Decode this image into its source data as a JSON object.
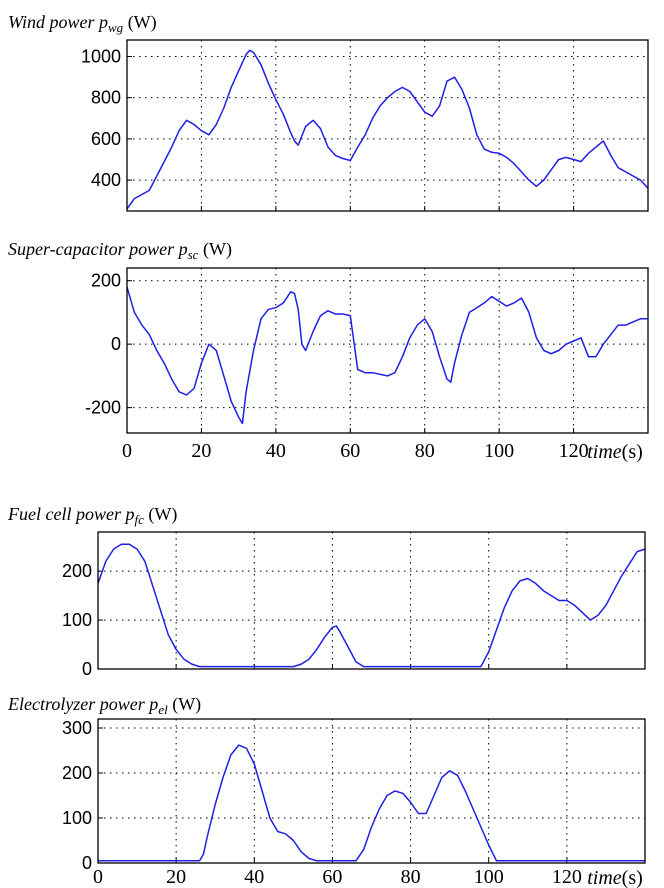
{
  "colors": {
    "series": "#1f1fe6",
    "axis": "#000000",
    "background": "#ffffff"
  },
  "x_axis": {
    "ticks": [
      0,
      20,
      40,
      60,
      80,
      100,
      120
    ],
    "label_main": "time",
    "label_unit": "(s)"
  },
  "chart_data": [
    {
      "type": "line",
      "title_main": "Wind power p",
      "title_sub": "wg",
      "title_unit": " (W)",
      "xlim": [
        0,
        140
      ],
      "ylim": [
        250,
        1080
      ],
      "yticks": [
        400,
        600,
        800,
        1000
      ],
      "grid": true,
      "series": [
        {
          "x": [
            0,
            2,
            4,
            6,
            8,
            10,
            12,
            14,
            16,
            17,
            18,
            20,
            22,
            24,
            26,
            28,
            30,
            32,
            33,
            34,
            36,
            38,
            40,
            42,
            44,
            45,
            46,
            48,
            50,
            52,
            54,
            56,
            58,
            60,
            62,
            64,
            66,
            68,
            70,
            72,
            74,
            76,
            78,
            80,
            82,
            84,
            86,
            88,
            90,
            92,
            94,
            96,
            98,
            100,
            102,
            104,
            106,
            108,
            110,
            112,
            114,
            116,
            118,
            120,
            122,
            124,
            126,
            128,
            130,
            132,
            134,
            136,
            138,
            140
          ],
          "y": [
            260,
            310,
            330,
            350,
            420,
            490,
            560,
            640,
            690,
            680,
            670,
            640,
            620,
            670,
            750,
            850,
            930,
            1010,
            1030,
            1020,
            960,
            870,
            790,
            720,
            630,
            590,
            570,
            660,
            690,
            650,
            560,
            520,
            505,
            495,
            560,
            620,
            700,
            760,
            800,
            830,
            850,
            830,
            780,
            730,
            710,
            760,
            880,
            900,
            840,
            750,
            620,
            550,
            535,
            530,
            510,
            480,
            440,
            400,
            370,
            400,
            450,
            500,
            510,
            500,
            490,
            530,
            560,
            590,
            520,
            460,
            440,
            420,
            400,
            360
          ]
        }
      ]
    },
    {
      "type": "line",
      "title_main": "Super-capacitor power p",
      "title_sub": "sc",
      "title_unit": " (W)",
      "xlim": [
        0,
        140
      ],
      "ylim": [
        -280,
        240
      ],
      "yticks": [
        -200,
        0,
        200
      ],
      "grid": true,
      "series": [
        {
          "x": [
            0,
            1,
            2,
            4,
            6,
            8,
            10,
            12,
            14,
            16,
            18,
            20,
            22,
            24,
            26,
            28,
            30,
            31,
            32,
            34,
            36,
            38,
            40,
            42,
            44,
            45,
            46,
            47,
            48,
            50,
            52,
            54,
            56,
            58,
            60,
            62,
            64,
            66,
            68,
            70,
            72,
            74,
            76,
            78,
            80,
            82,
            84,
            86,
            87,
            88,
            90,
            92,
            94,
            96,
            98,
            100,
            102,
            104,
            106,
            108,
            110,
            112,
            114,
            116,
            118,
            120,
            122,
            124,
            126,
            128,
            130,
            132,
            134,
            136,
            138,
            140
          ],
          "y": [
            180,
            140,
            100,
            60,
            30,
            -20,
            -60,
            -110,
            -150,
            -160,
            -140,
            -60,
            0,
            -20,
            -100,
            -180,
            -230,
            -250,
            -150,
            -20,
            80,
            110,
            115,
            130,
            165,
            160,
            110,
            0,
            -20,
            40,
            90,
            105,
            95,
            95,
            90,
            -80,
            -90,
            -90,
            -95,
            -100,
            -90,
            -40,
            20,
            60,
            80,
            40,
            -40,
            -110,
            -120,
            -60,
            30,
            100,
            115,
            130,
            150,
            135,
            120,
            130,
            145,
            100,
            20,
            -20,
            -30,
            -20,
            0,
            10,
            20,
            -40,
            -40,
            0,
            30,
            60,
            60,
            70,
            80,
            80
          ]
        }
      ]
    },
    {
      "type": "line",
      "title_main": "Fuel cell power p",
      "title_sub": "fc",
      "title_unit": " (W)",
      "xlim": [
        0,
        140
      ],
      "ylim": [
        0,
        280
      ],
      "yticks": [
        0,
        100,
        200
      ],
      "grid": true,
      "series": [
        {
          "x": [
            0,
            2,
            4,
            6,
            8,
            10,
            12,
            14,
            16,
            18,
            20,
            22,
            24,
            26,
            28,
            30,
            40,
            50,
            52,
            54,
            56,
            58,
            60,
            61,
            62,
            64,
            66,
            68,
            70,
            80,
            90,
            95,
            98,
            100,
            102,
            104,
            106,
            108,
            110,
            112,
            114,
            116,
            118,
            120,
            122,
            124,
            126,
            128,
            130,
            132,
            134,
            136,
            138,
            140
          ],
          "y": [
            175,
            220,
            245,
            255,
            255,
            245,
            220,
            170,
            120,
            70,
            40,
            20,
            10,
            5,
            5,
            5,
            5,
            5,
            10,
            20,
            40,
            65,
            85,
            88,
            75,
            45,
            15,
            5,
            5,
            5,
            5,
            5,
            5,
            35,
            80,
            125,
            160,
            180,
            185,
            175,
            160,
            150,
            140,
            140,
            130,
            115,
            100,
            110,
            130,
            160,
            190,
            215,
            240,
            245
          ]
        }
      ]
    },
    {
      "type": "line",
      "title_main": "Electrolyzer power p",
      "title_sub": "el",
      "title_unit": " (W)",
      "xlim": [
        0,
        140
      ],
      "ylim": [
        0,
        320
      ],
      "yticks": [
        0,
        100,
        200,
        300
      ],
      "grid": true,
      "series": [
        {
          "x": [
            0,
            10,
            20,
            26,
            27,
            28,
            30,
            32,
            34,
            36,
            38,
            40,
            42,
            44,
            46,
            48,
            50,
            52,
            54,
            56,
            66,
            68,
            70,
            72,
            74,
            76,
            78,
            80,
            82,
            84,
            86,
            88,
            90,
            92,
            94,
            96,
            98,
            100,
            102,
            104,
            140
          ],
          "y": [
            5,
            5,
            5,
            5,
            20,
            60,
            130,
            190,
            240,
            262,
            255,
            220,
            160,
            100,
            70,
            65,
            50,
            25,
            10,
            5,
            5,
            30,
            80,
            120,
            150,
            160,
            155,
            135,
            110,
            110,
            150,
            190,
            205,
            195,
            160,
            120,
            80,
            40,
            5,
            5,
            5
          ]
        }
      ]
    }
  ]
}
